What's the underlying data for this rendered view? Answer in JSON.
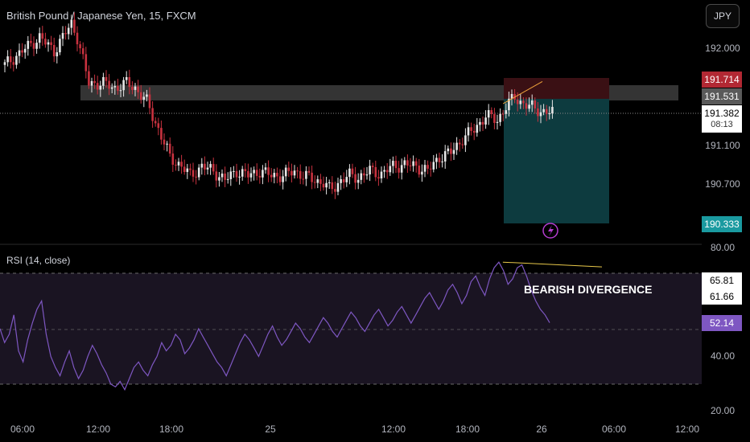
{
  "header": {
    "title": "British Pound / Japanese Yen, 15, FXCM",
    "currency_button": "JPY"
  },
  "indicator": {
    "title": "RSI (14, close)"
  },
  "annotation": {
    "text": "BEARISH DIVERGENCE"
  },
  "colors": {
    "up": "#e6e6e6",
    "down": "#c8323f",
    "rsi": "#7e57c2",
    "target_zone": "#0d3b3f",
    "stop_zone": "#3a1014",
    "resistance_zone": "#3a3a3a"
  },
  "chart_data": [
    {
      "type": "candlestick",
      "title": "British Pound / Japanese Yen, 15, FXCM",
      "x_tick_labels": [
        "06:00",
        "12:00",
        "18:00",
        "25",
        "12:00",
        "18:00",
        "26",
        "06:00",
        "12:00"
      ],
      "y_tick_labels": [
        "192.000",
        "191.100",
        "190.700"
      ],
      "ylim": [
        190.12,
        192.43
      ],
      "current_price": {
        "value": "191.382",
        "countdown": "08:13"
      },
      "price_labels": {
        "stop": "191.714",
        "entry": "191.531",
        "target": "190.333"
      },
      "trade_zones": {
        "entry": 191.531,
        "stop": 191.714,
        "target": 190.333
      },
      "close_path": [
        [
          0,
          191.9
        ],
        [
          8,
          192.1
        ],
        [
          12,
          192.2
        ],
        [
          17,
          192.05
        ],
        [
          20,
          192.2
        ],
        [
          23,
          192.35
        ],
        [
          25,
          192.2
        ],
        [
          27,
          191.95
        ],
        [
          29,
          191.7
        ],
        [
          34,
          191.7
        ],
        [
          38,
          191.65
        ],
        [
          42,
          191.7
        ],
        [
          45,
          191.65
        ],
        [
          49,
          191.5
        ],
        [
          53,
          191.2
        ],
        [
          57,
          190.9
        ],
        [
          61,
          190.8
        ],
        [
          64,
          190.7
        ],
        [
          68,
          190.8
        ],
        [
          72,
          190.75
        ],
        [
          76,
          190.65
        ],
        [
          80,
          190.75
        ],
        [
          84,
          190.7
        ],
        [
          88,
          190.75
        ],
        [
          92,
          190.7
        ],
        [
          96,
          190.7
        ],
        [
          100,
          190.75
        ],
        [
          103,
          190.7
        ],
        [
          107,
          190.65
        ],
        [
          110,
          190.62
        ],
        [
          112,
          190.55
        ],
        [
          114,
          190.58
        ],
        [
          116,
          190.65
        ],
        [
          119,
          190.7
        ],
        [
          122,
          190.68
        ],
        [
          126,
          190.75
        ],
        [
          130,
          190.72
        ],
        [
          134,
          190.8
        ],
        [
          138,
          190.82
        ],
        [
          142,
          190.8
        ],
        [
          146,
          190.75
        ],
        [
          150,
          190.9
        ],
        [
          154,
          190.95
        ],
        [
          158,
          191.1
        ],
        [
          162,
          191.2
        ],
        [
          166,
          191.35
        ],
        [
          170,
          191.3
        ],
        [
          173,
          191.45
        ],
        [
          176,
          191.55
        ],
        [
          178,
          191.5
        ],
        [
          181,
          191.45
        ],
        [
          185,
          191.4
        ],
        [
          189,
          191.38
        ]
      ],
      "bearish_divergence_price_line": [
        [
          172,
          191.48
        ],
        [
          180,
          191.65
        ]
      ]
    },
    {
      "type": "line",
      "title": "RSI (14, close)",
      "y_tick_labels": [
        "80.00",
        "40.00",
        "20.00"
      ],
      "ylim": [
        20,
        80
      ],
      "band": [
        30,
        70
      ],
      "midline": 50,
      "current_value_labels": [
        "65.81",
        "61.66",
        "52.14"
      ],
      "series": [
        {
          "values": [
            50,
            45,
            48,
            55,
            42,
            38,
            46,
            52,
            57,
            60,
            48,
            40,
            36,
            33,
            38,
            42,
            36,
            32,
            35,
            40,
            44,
            41,
            37,
            34,
            30,
            29,
            31,
            28,
            32,
            36,
            38,
            35,
            33,
            37,
            40,
            45,
            42,
            44,
            48,
            46,
            41,
            43,
            46,
            50,
            47,
            44,
            41,
            38,
            36,
            33,
            37,
            41,
            45,
            48,
            46,
            43,
            40,
            44,
            48,
            51,
            47,
            44,
            46,
            49,
            52,
            50,
            47,
            45,
            48,
            51,
            54,
            52,
            49,
            47,
            50,
            53,
            56,
            54,
            51,
            49,
            52,
            55,
            57,
            54,
            51,
            53,
            56,
            58,
            55,
            52,
            55,
            58,
            61,
            63,
            60,
            57,
            60,
            64,
            66,
            63,
            59,
            62,
            67,
            69,
            65,
            62,
            68,
            72,
            74,
            71,
            66,
            68,
            72,
            73,
            69,
            64,
            60,
            57,
            55,
            52.14
          ]
        }
      ],
      "bearish_divergence_rsi_line": [
        [
          108,
          74
        ],
        [
          119,
          72
        ]
      ]
    }
  ]
}
